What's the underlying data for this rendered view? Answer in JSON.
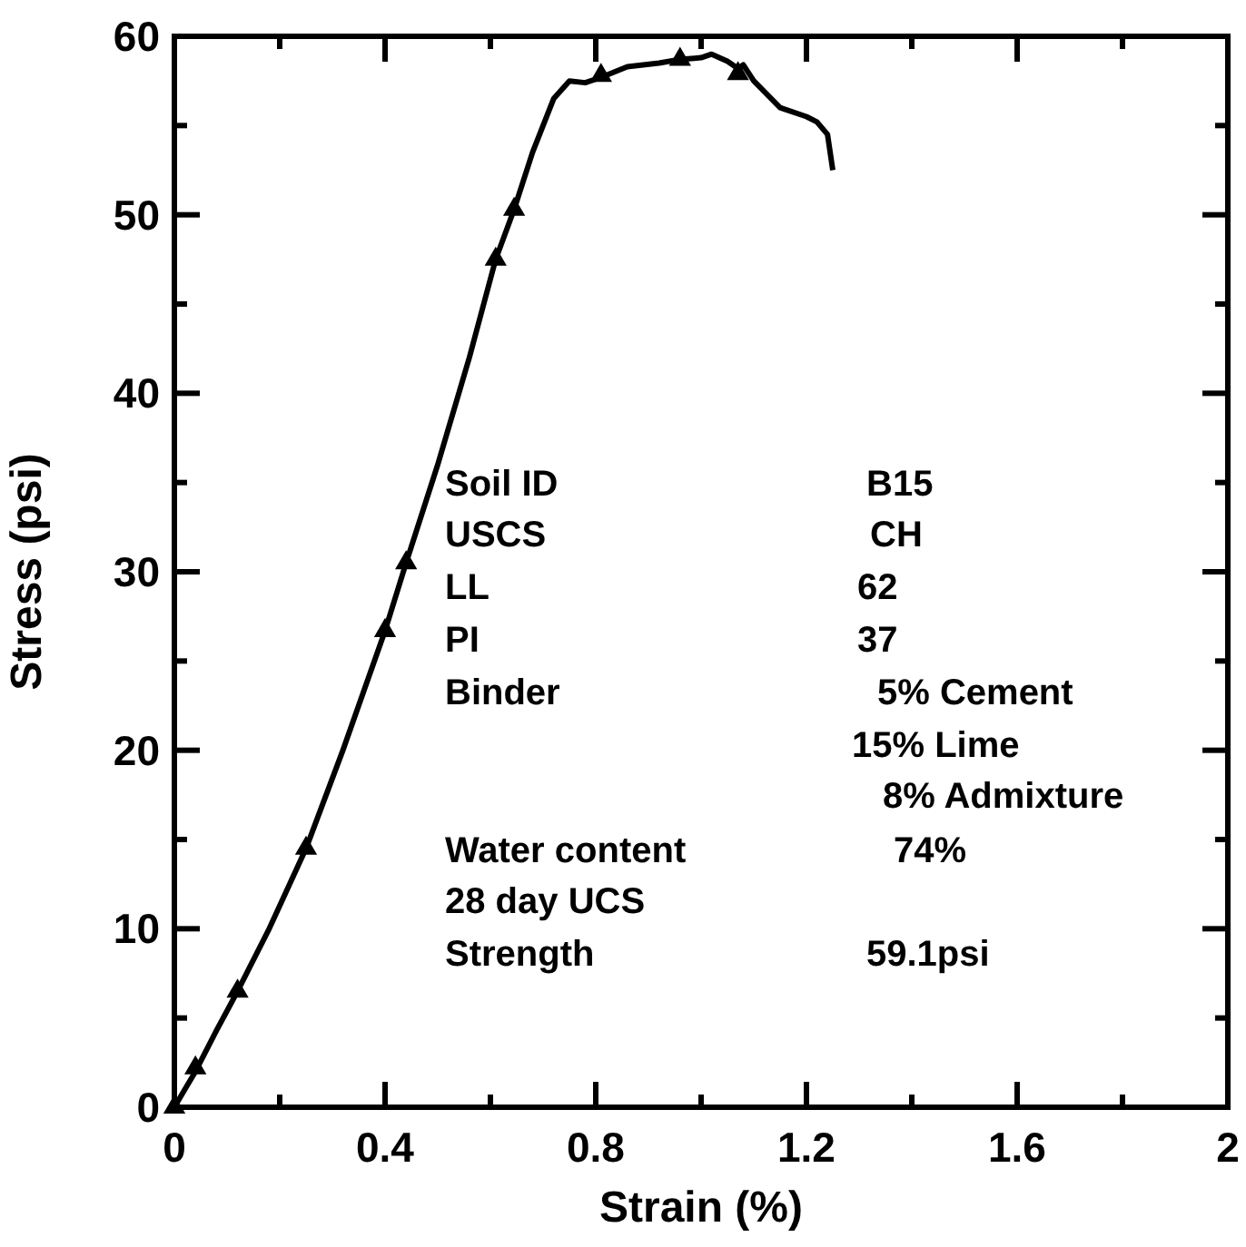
{
  "chart_data": {
    "type": "line",
    "xlabel": "Strain (%)",
    "ylabel": "Stress (psi)",
    "xlim": [
      0,
      2
    ],
    "ylim": [
      0,
      60
    ],
    "xticks": [
      0,
      {
        "value": 0.2,
        "label": null
      },
      0.4,
      {
        "value": 0.6,
        "label": null
      },
      0.8,
      {
        "value": 1.0,
        "label": null
      },
      1.2,
      {
        "value": 1.4,
        "label": null
      },
      1.6,
      {
        "value": 1.8,
        "label": null
      },
      2
    ],
    "yticks": [
      0,
      {
        "value": 5,
        "label": null
      },
      10,
      {
        "value": 15,
        "label": null
      },
      20,
      {
        "value": 25,
        "label": null
      },
      30,
      {
        "value": 35,
        "label": null
      },
      40,
      {
        "value": 45,
        "label": null
      },
      50,
      {
        "value": 55,
        "label": null
      },
      60
    ],
    "grid": false,
    "legend": false,
    "series": [
      {
        "marker": "none",
        "color": "#000000",
        "x": [
          0,
          0.02,
          0.04,
          0.08,
          0.12,
          0.18,
          0.25,
          0.32,
          0.4,
          0.44,
          0.5,
          0.56,
          0.61,
          0.645,
          0.68,
          0.72,
          0.75,
          0.78,
          0.81,
          0.86,
          0.92,
          0.96,
          1.0,
          1.02,
          1.05,
          1.07,
          1.08,
          1.1,
          1.15,
          1.2,
          1.22,
          1.24,
          1.25
        ],
        "values": [
          0,
          1,
          2,
          4.3,
          6.5,
          10,
          14.5,
          20,
          26.7,
          30.5,
          36,
          42,
          47.5,
          50.3,
          53.5,
          56.5,
          57.5,
          57.4,
          57.7,
          58.3,
          58.5,
          58.7,
          58.8,
          59,
          58.6,
          58.2,
          58.4,
          57.5,
          56,
          55.5,
          55.2,
          54.5,
          52.5
        ]
      },
      {
        "type": "scatter",
        "marker": "triangle",
        "color": "#000000",
        "x": [
          0,
          0.04,
          0.12,
          0.25,
          0.4,
          0.44,
          0.61,
          0.645,
          0.81,
          0.96,
          1.07
        ],
        "values": [
          0,
          2.2,
          6.5,
          14.5,
          26.7,
          30.5,
          47.5,
          50.3,
          57.8,
          58.7,
          57.9
        ]
      }
    ],
    "annotations": [
      "Soil ID",
      "B15",
      "USCS",
      "CH",
      "LL",
      "62",
      "PI",
      "37",
      "Binder",
      "5% Cement",
      "15% Lime",
      "8% Admixture",
      "Water content",
      "74%",
      "28 day UCS",
      "Strength",
      "59.1psi"
    ]
  }
}
